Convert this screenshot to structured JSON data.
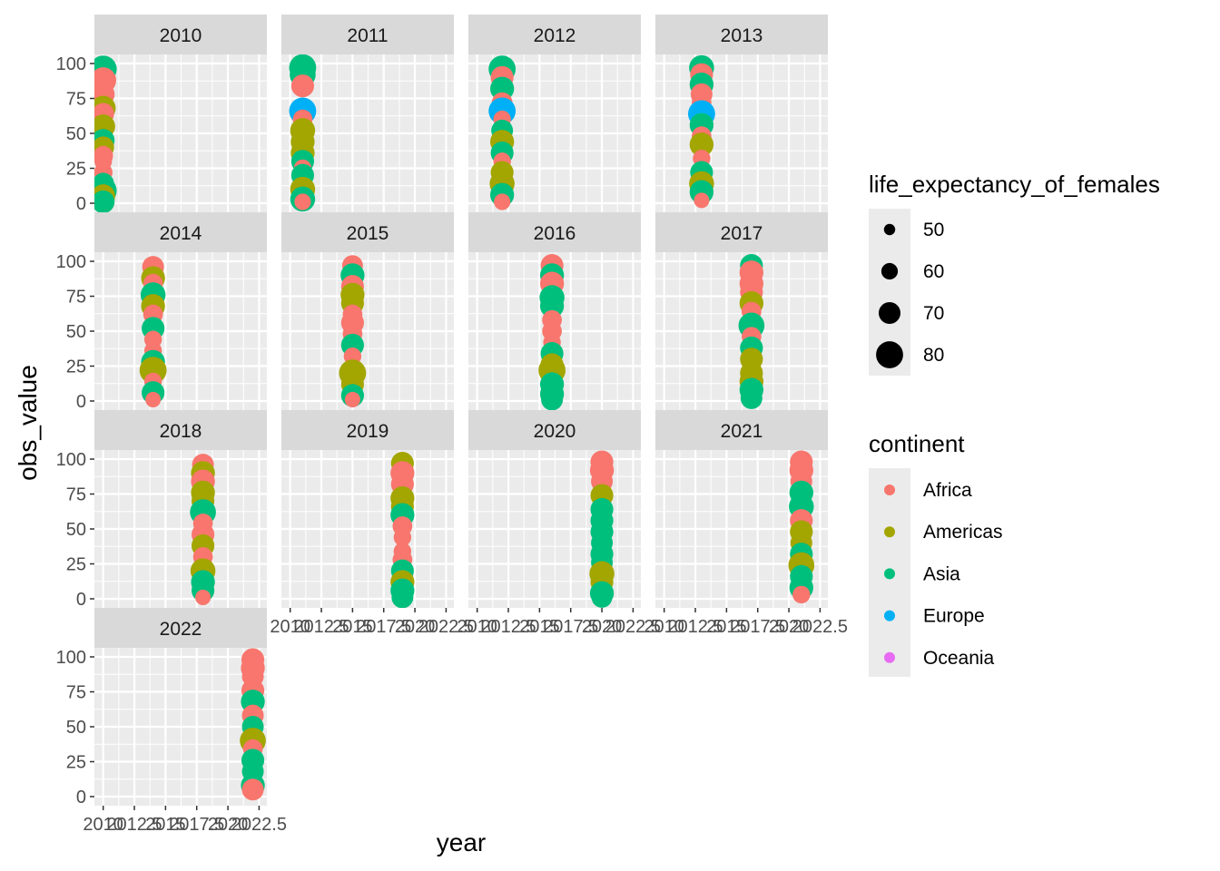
{
  "chart_data": {
    "type": "scatter",
    "facet_by": "year",
    "facet_layout": "4 columns, shared axes; x tick labels drawn on bottom panel of each column",
    "xlabel": "year",
    "ylabel": "obs_value",
    "xlim": [
      2010,
      2022.5
    ],
    "ylim": [
      0,
      100
    ],
    "x_ticks": [
      2010,
      2012.5,
      2015,
      2017.5,
      2020,
      2022.5
    ],
    "x_tick_labels": [
      "2010",
      "2012.5",
      "2015",
      "2017.5",
      "2020",
      "2022.5"
    ],
    "y_ticks": [
      0,
      25,
      50,
      75,
      100
    ],
    "y_tick_labels": [
      "0",
      "25",
      "50",
      "75",
      "100"
    ],
    "grid": true,
    "legend_position": "right",
    "size_legend": {
      "title": "life_expectancy_of_females",
      "breaks": [
        50,
        60,
        70,
        80
      ],
      "labels": [
        "50",
        "60",
        "70",
        "80"
      ]
    },
    "color_legend": {
      "title": "continent",
      "items": [
        {
          "label": "Africa",
          "color": "#F8766D"
        },
        {
          "label": "Americas",
          "color": "#A3A500"
        },
        {
          "label": "Asia",
          "color": "#00BF7D"
        },
        {
          "label": "Europe",
          "color": "#00B0F6"
        },
        {
          "label": "Oceania",
          "color": "#E76BF3"
        }
      ]
    },
    "facets": [
      {
        "label": "2010",
        "year": 2010,
        "points": [
          {
            "y": 96,
            "c": "Asia",
            "s": 80
          },
          {
            "y": 88,
            "c": "Africa",
            "s": 78
          },
          {
            "y": 78,
            "c": "Africa",
            "s": 72
          },
          {
            "y": 68,
            "c": "Americas",
            "s": 76
          },
          {
            "y": 64,
            "c": "Africa",
            "s": 70
          },
          {
            "y": 55,
            "c": "Americas",
            "s": 74
          },
          {
            "y": 45,
            "c": "Asia",
            "s": 72
          },
          {
            "y": 40,
            "c": "Americas",
            "s": 70
          },
          {
            "y": 34,
            "c": "Africa",
            "s": 66
          },
          {
            "y": 30,
            "c": "Africa",
            "s": 62
          },
          {
            "y": 22,
            "c": "Africa",
            "s": 64
          },
          {
            "y": 14,
            "c": "Asia",
            "s": 70
          },
          {
            "y": 9,
            "c": "Asia",
            "s": 80
          },
          {
            "y": 5,
            "c": "Americas",
            "s": 74
          },
          {
            "y": 1,
            "c": "Asia",
            "s": 72
          }
        ]
      },
      {
        "label": "2011",
        "year": 2011,
        "points": [
          {
            "y": 97,
            "c": "Asia",
            "s": 80
          },
          {
            "y": 92,
            "c": "Asia",
            "s": 78
          },
          {
            "y": 84,
            "c": "Africa",
            "s": 72
          },
          {
            "y": 66,
            "c": "Europe",
            "s": 80
          },
          {
            "y": 60,
            "c": "Africa",
            "s": 66
          },
          {
            "y": 52,
            "c": "Americas",
            "s": 76
          },
          {
            "y": 44,
            "c": "Americas",
            "s": 74
          },
          {
            "y": 36,
            "c": "Americas",
            "s": 74
          },
          {
            "y": 30,
            "c": "Asia",
            "s": 72
          },
          {
            "y": 25,
            "c": "Africa",
            "s": 62
          },
          {
            "y": 20,
            "c": "Asia",
            "s": 72
          },
          {
            "y": 10,
            "c": "Americas",
            "s": 76
          },
          {
            "y": 3,
            "c": "Asia",
            "s": 76
          },
          {
            "y": 1,
            "c": "Africa",
            "s": 60
          }
        ]
      },
      {
        "label": "2012",
        "year": 2012,
        "points": [
          {
            "y": 96,
            "c": "Asia",
            "s": 80
          },
          {
            "y": 90,
            "c": "Africa",
            "s": 72
          },
          {
            "y": 82,
            "c": "Asia",
            "s": 74
          },
          {
            "y": 72,
            "c": "Africa",
            "s": 68
          },
          {
            "y": 66,
            "c": "Europe",
            "s": 80
          },
          {
            "y": 60,
            "c": "Africa",
            "s": 62
          },
          {
            "y": 52,
            "c": "Asia",
            "s": 70
          },
          {
            "y": 44,
            "c": "Americas",
            "s": 74
          },
          {
            "y": 36,
            "c": "Asia",
            "s": 72
          },
          {
            "y": 30,
            "c": "Africa",
            "s": 62
          },
          {
            "y": 22,
            "c": "Americas",
            "s": 72
          },
          {
            "y": 14,
            "c": "Americas",
            "s": 76
          },
          {
            "y": 6,
            "c": "Asia",
            "s": 74
          },
          {
            "y": 1,
            "c": "Africa",
            "s": 60
          }
        ]
      },
      {
        "label": "2013",
        "year": 2013,
        "points": [
          {
            "y": 97,
            "c": "Asia",
            "s": 76
          },
          {
            "y": 92,
            "c": "Africa",
            "s": 72
          },
          {
            "y": 85,
            "c": "Asia",
            "s": 74
          },
          {
            "y": 78,
            "c": "Africa",
            "s": 70
          },
          {
            "y": 72,
            "c": "Africa",
            "s": 66
          },
          {
            "y": 64,
            "c": "Europe",
            "s": 80
          },
          {
            "y": 56,
            "c": "Asia",
            "s": 74
          },
          {
            "y": 48,
            "c": "Africa",
            "s": 66
          },
          {
            "y": 42,
            "c": "Americas",
            "s": 74
          },
          {
            "y": 32,
            "c": "Africa",
            "s": 62
          },
          {
            "y": 22,
            "c": "Asia",
            "s": 72
          },
          {
            "y": 14,
            "c": "Americas",
            "s": 76
          },
          {
            "y": 8,
            "c": "Asia",
            "s": 74
          },
          {
            "y": 2,
            "c": "Africa",
            "s": 58
          }
        ]
      },
      {
        "label": "2014",
        "year": 2014,
        "points": [
          {
            "y": 96,
            "c": "Africa",
            "s": 70
          },
          {
            "y": 88,
            "c": "Americas",
            "s": 74
          },
          {
            "y": 84,
            "c": "Africa",
            "s": 66
          },
          {
            "y": 76,
            "c": "Asia",
            "s": 76
          },
          {
            "y": 68,
            "c": "Americas",
            "s": 74
          },
          {
            "y": 62,
            "c": "Africa",
            "s": 66
          },
          {
            "y": 52,
            "c": "Asia",
            "s": 72
          },
          {
            "y": 44,
            "c": "Africa",
            "s": 62
          },
          {
            "y": 36,
            "c": "Africa",
            "s": 62
          },
          {
            "y": 28,
            "c": "Asia",
            "s": 74
          },
          {
            "y": 22,
            "c": "Americas",
            "s": 80
          },
          {
            "y": 14,
            "c": "Africa",
            "s": 62
          },
          {
            "y": 6,
            "c": "Asia",
            "s": 72
          },
          {
            "y": 1,
            "c": "Africa",
            "s": 58
          }
        ]
      },
      {
        "label": "2015",
        "year": 2015,
        "points": [
          {
            "y": 97,
            "c": "Africa",
            "s": 68
          },
          {
            "y": 90,
            "c": "Asia",
            "s": 74
          },
          {
            "y": 82,
            "c": "Africa",
            "s": 72
          },
          {
            "y": 76,
            "c": "Americas",
            "s": 74
          },
          {
            "y": 70,
            "c": "Americas",
            "s": 72
          },
          {
            "y": 62,
            "c": "Africa",
            "s": 66
          },
          {
            "y": 56,
            "c": "Africa",
            "s": 72
          },
          {
            "y": 48,
            "c": "Africa",
            "s": 66
          },
          {
            "y": 40,
            "c": "Asia",
            "s": 72
          },
          {
            "y": 32,
            "c": "Africa",
            "s": 62
          },
          {
            "y": 20,
            "c": "Americas",
            "s": 80
          },
          {
            "y": 12,
            "c": "Americas",
            "s": 72
          },
          {
            "y": 4,
            "c": "Asia",
            "s": 72
          },
          {
            "y": 1,
            "c": "Africa",
            "s": 58
          }
        ]
      },
      {
        "label": "2016",
        "year": 2016,
        "points": [
          {
            "y": 97,
            "c": "Africa",
            "s": 72
          },
          {
            "y": 90,
            "c": "Asia",
            "s": 74
          },
          {
            "y": 84,
            "c": "Africa",
            "s": 74
          },
          {
            "y": 74,
            "c": "Asia",
            "s": 76
          },
          {
            "y": 68,
            "c": "Asia",
            "s": 74
          },
          {
            "y": 58,
            "c": "Africa",
            "s": 66
          },
          {
            "y": 50,
            "c": "Africa",
            "s": 66
          },
          {
            "y": 42,
            "c": "Africa",
            "s": 62
          },
          {
            "y": 34,
            "c": "Asia",
            "s": 72
          },
          {
            "y": 26,
            "c": "Americas",
            "s": 72
          },
          {
            "y": 22,
            "c": "Americas",
            "s": 80
          },
          {
            "y": 12,
            "c": "Asia",
            "s": 74
          },
          {
            "y": 5,
            "c": "Asia",
            "s": 74
          },
          {
            "y": 1,
            "c": "Asia",
            "s": 70
          }
        ]
      },
      {
        "label": "2017",
        "year": 2017,
        "points": [
          {
            "y": 97,
            "c": "Asia",
            "s": 72
          },
          {
            "y": 92,
            "c": "Africa",
            "s": 74
          },
          {
            "y": 84,
            "c": "Africa",
            "s": 74
          },
          {
            "y": 78,
            "c": "Africa",
            "s": 72
          },
          {
            "y": 70,
            "c": "Americas",
            "s": 74
          },
          {
            "y": 64,
            "c": "Africa",
            "s": 66
          },
          {
            "y": 54,
            "c": "Asia",
            "s": 78
          },
          {
            "y": 46,
            "c": "Africa",
            "s": 66
          },
          {
            "y": 38,
            "c": "Asia",
            "s": 72
          },
          {
            "y": 30,
            "c": "Americas",
            "s": 72
          },
          {
            "y": 20,
            "c": "Americas",
            "s": 72
          },
          {
            "y": 14,
            "c": "Americas",
            "s": 74
          },
          {
            "y": 8,
            "c": "Asia",
            "s": 74
          },
          {
            "y": 2,
            "c": "Asia",
            "s": 70
          }
        ]
      },
      {
        "label": "2018",
        "year": 2018,
        "points": [
          {
            "y": 96,
            "c": "Africa",
            "s": 70
          },
          {
            "y": 90,
            "c": "Americas",
            "s": 74
          },
          {
            "y": 84,
            "c": "Africa",
            "s": 74
          },
          {
            "y": 76,
            "c": "Americas",
            "s": 74
          },
          {
            "y": 70,
            "c": "Americas",
            "s": 72
          },
          {
            "y": 62,
            "c": "Asia",
            "s": 78
          },
          {
            "y": 54,
            "c": "Africa",
            "s": 66
          },
          {
            "y": 46,
            "c": "Africa",
            "s": 72
          },
          {
            "y": 38,
            "c": "Americas",
            "s": 72
          },
          {
            "y": 30,
            "c": "Africa",
            "s": 66
          },
          {
            "y": 20,
            "c": "Americas",
            "s": 76
          },
          {
            "y": 12,
            "c": "Asia",
            "s": 74
          },
          {
            "y": 6,
            "c": "Asia",
            "s": 72
          },
          {
            "y": 1,
            "c": "Africa",
            "s": 58
          }
        ]
      },
      {
        "label": "2019",
        "year": 2019,
        "points": [
          {
            "y": 97,
            "c": "Americas",
            "s": 72
          },
          {
            "y": 90,
            "c": "Africa",
            "s": 74
          },
          {
            "y": 82,
            "c": "Africa",
            "s": 72
          },
          {
            "y": 72,
            "c": "Americas",
            "s": 74
          },
          {
            "y": 66,
            "c": "Americas",
            "s": 72
          },
          {
            "y": 60,
            "c": "Asia",
            "s": 74
          },
          {
            "y": 52,
            "c": "Africa",
            "s": 66
          },
          {
            "y": 44,
            "c": "Africa",
            "s": 62
          },
          {
            "y": 34,
            "c": "Africa",
            "s": 62
          },
          {
            "y": 28,
            "c": "Africa",
            "s": 66
          },
          {
            "y": 20,
            "c": "Asia",
            "s": 72
          },
          {
            "y": 12,
            "c": "Americas",
            "s": 74
          },
          {
            "y": 6,
            "c": "Asia",
            "s": 74
          },
          {
            "y": 1,
            "c": "Asia",
            "s": 70
          }
        ]
      },
      {
        "label": "2020",
        "year": 2020,
        "points": [
          {
            "y": 98,
            "c": "Africa",
            "s": 72
          },
          {
            "y": 92,
            "c": "Africa",
            "s": 74
          },
          {
            "y": 84,
            "c": "Africa",
            "s": 70
          },
          {
            "y": 74,
            "c": "Americas",
            "s": 72
          },
          {
            "y": 64,
            "c": "Asia",
            "s": 72
          },
          {
            "y": 56,
            "c": "Asia",
            "s": 72
          },
          {
            "y": 48,
            "c": "Asia",
            "s": 72
          },
          {
            "y": 40,
            "c": "Asia",
            "s": 70
          },
          {
            "y": 32,
            "c": "Asia",
            "s": 72
          },
          {
            "y": 26,
            "c": "Asia",
            "s": 70
          },
          {
            "y": 18,
            "c": "Americas",
            "s": 76
          },
          {
            "y": 12,
            "c": "Americas",
            "s": 72
          },
          {
            "y": 4,
            "c": "Asia",
            "s": 74
          },
          {
            "y": 1,
            "c": "Asia",
            "s": 68
          }
        ]
      },
      {
        "label": "2021",
        "year": 2021,
        "points": [
          {
            "y": 98,
            "c": "Africa",
            "s": 72
          },
          {
            "y": 92,
            "c": "Africa",
            "s": 74
          },
          {
            "y": 84,
            "c": "Africa",
            "s": 70
          },
          {
            "y": 76,
            "c": "Asia",
            "s": 74
          },
          {
            "y": 66,
            "c": "Asia",
            "s": 76
          },
          {
            "y": 56,
            "c": "Africa",
            "s": 72
          },
          {
            "y": 48,
            "c": "Americas",
            "s": 72
          },
          {
            "y": 40,
            "c": "Americas",
            "s": 70
          },
          {
            "y": 32,
            "c": "Asia",
            "s": 72
          },
          {
            "y": 24,
            "c": "Americas",
            "s": 78
          },
          {
            "y": 16,
            "c": "Asia",
            "s": 72
          },
          {
            "y": 8,
            "c": "Asia",
            "s": 74
          },
          {
            "y": 3,
            "c": "Africa",
            "s": 62
          }
        ]
      },
      {
        "label": "2022",
        "year": 2022,
        "points": [
          {
            "y": 98,
            "c": "Africa",
            "s": 72
          },
          {
            "y": 92,
            "c": "Africa",
            "s": 74
          },
          {
            "y": 86,
            "c": "Africa",
            "s": 70
          },
          {
            "y": 76,
            "c": "Africa",
            "s": 72
          },
          {
            "y": 68,
            "c": "Asia",
            "s": 74
          },
          {
            "y": 58,
            "c": "Africa",
            "s": 70
          },
          {
            "y": 50,
            "c": "Asia",
            "s": 70
          },
          {
            "y": 40,
            "c": "Americas",
            "s": 78
          },
          {
            "y": 34,
            "c": "Africa",
            "s": 66
          },
          {
            "y": 26,
            "c": "Asia",
            "s": 72
          },
          {
            "y": 18,
            "c": "Asia",
            "s": 70
          },
          {
            "y": 8,
            "c": "Asia",
            "s": 74
          },
          {
            "y": 5,
            "c": "Africa",
            "s": 70
          }
        ]
      }
    ]
  }
}
